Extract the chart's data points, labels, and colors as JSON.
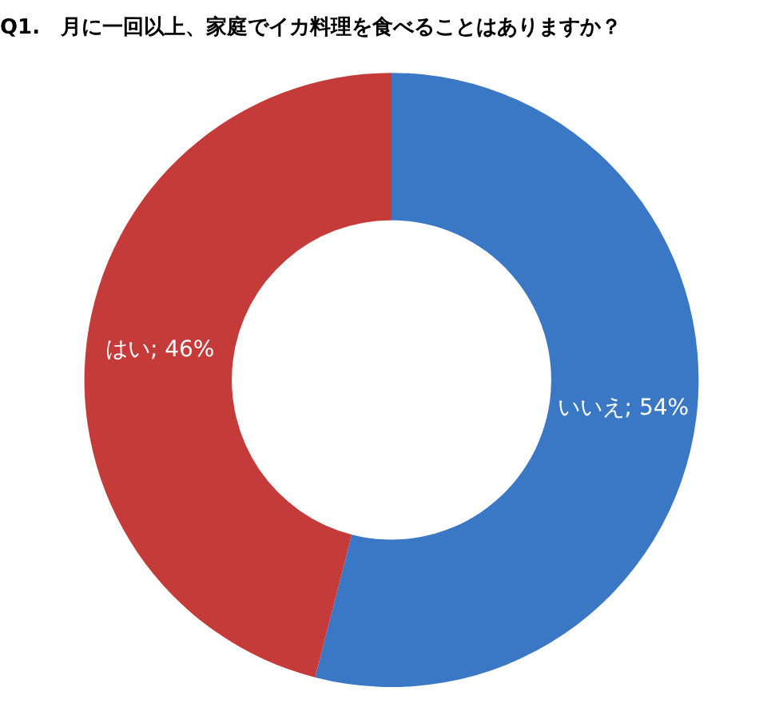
{
  "chart_data": {
    "type": "donut",
    "title": "Q1.　月に一回以上、家庭でイカ料理を食べることはありますか？",
    "categories": [
      "いいえ",
      "はい"
    ],
    "values": [
      54,
      46
    ],
    "colors": [
      "#3a78c6",
      "#c43b3a"
    ],
    "value_labels": [
      "54%",
      "46%"
    ],
    "legend": false
  }
}
